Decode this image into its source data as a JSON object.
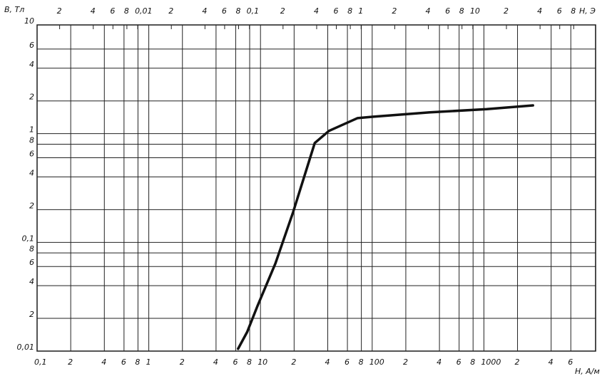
{
  "chart_data": {
    "type": "line",
    "ylabel": "B, Тл",
    "xlabel": "H, A/м",
    "x2label": "H, Э",
    "xscale": "log",
    "yscale": "log",
    "grid": true,
    "xlim": [
      0.1,
      10000
    ],
    "ylim": [
      0.01,
      10
    ],
    "x2lim": [
      0.0012566,
      125.66
    ],
    "xticks": [
      {
        "value": 0.1,
        "label": "0,1"
      },
      {
        "value": 0.2,
        "label": "2"
      },
      {
        "value": 0.4,
        "label": "4"
      },
      {
        "value": 0.6,
        "label": "6"
      },
      {
        "value": 0.8,
        "label": "8"
      },
      1,
      {
        "value": 2,
        "label": "2"
      },
      {
        "value": 4,
        "label": "4"
      },
      {
        "value": 6,
        "label": "6"
      },
      {
        "value": 8,
        "label": "8"
      },
      10,
      {
        "value": 20,
        "label": "2"
      },
      {
        "value": 40,
        "label": "4"
      },
      {
        "value": 60,
        "label": "6"
      },
      {
        "value": 80,
        "label": "8"
      },
      100,
      {
        "value": 200,
        "label": "2"
      },
      {
        "value": 400,
        "label": "4"
      },
      {
        "value": 600,
        "label": "6"
      },
      {
        "value": 800,
        "label": "8"
      },
      1000,
      {
        "value": 2000,
        "label": "2"
      },
      {
        "value": 4000,
        "label": "4"
      },
      {
        "value": 6000,
        "label": "6"
      }
    ],
    "x2ticks": [
      {
        "value": 0.002,
        "label": "2"
      },
      {
        "value": 0.004,
        "label": "4"
      },
      {
        "value": 0.006,
        "label": "6"
      },
      {
        "value": 0.008,
        "label": "8"
      },
      {
        "value": 0.01,
        "label": "0,01"
      },
      {
        "value": 0.02,
        "label": "2"
      },
      {
        "value": 0.04,
        "label": "4"
      },
      {
        "value": 0.06,
        "label": "6"
      },
      {
        "value": 0.08,
        "label": "8"
      },
      {
        "value": 0.1,
        "label": "0,1"
      },
      {
        "value": 0.2,
        "label": "2"
      },
      {
        "value": 0.4,
        "label": "4"
      },
      {
        "value": 0.6,
        "label": "6"
      },
      {
        "value": 0.8,
        "label": "8"
      },
      1,
      {
        "value": 2,
        "label": "2"
      },
      {
        "value": 4,
        "label": "4"
      },
      {
        "value": 6,
        "label": "6"
      },
      {
        "value": 8,
        "label": "8"
      },
      10,
      {
        "value": 20,
        "label": "2"
      },
      {
        "value": 40,
        "label": "4"
      },
      {
        "value": 60,
        "label": "6"
      },
      {
        "value": 80,
        "label": "8"
      }
    ],
    "yticks": [
      {
        "value": 0.01,
        "label": "0,01"
      },
      {
        "value": 0.02,
        "label": "2"
      },
      {
        "value": 0.04,
        "label": "4"
      },
      {
        "value": 0.06,
        "label": "6"
      },
      {
        "value": 0.08,
        "label": "8"
      },
      {
        "value": 0.1,
        "label": "0,1"
      },
      {
        "value": 0.2,
        "label": "2"
      },
      {
        "value": 0.4,
        "label": "4"
      },
      {
        "value": 0.6,
        "label": "6"
      },
      {
        "value": 0.8,
        "label": "8"
      },
      1,
      2,
      4,
      6,
      10
    ],
    "x": [
      6.3,
      7.6,
      9.4,
      13.6,
      19.6,
      30.6,
      41,
      74,
      100,
      328,
      1060,
      2750
    ],
    "series": [
      {
        "color": "#111111",
        "values": [
          0.0105,
          0.015,
          0.026,
          0.064,
          0.19,
          0.82,
          1.06,
          1.39,
          1.43,
          1.57,
          1.68,
          1.82
        ]
      }
    ]
  }
}
